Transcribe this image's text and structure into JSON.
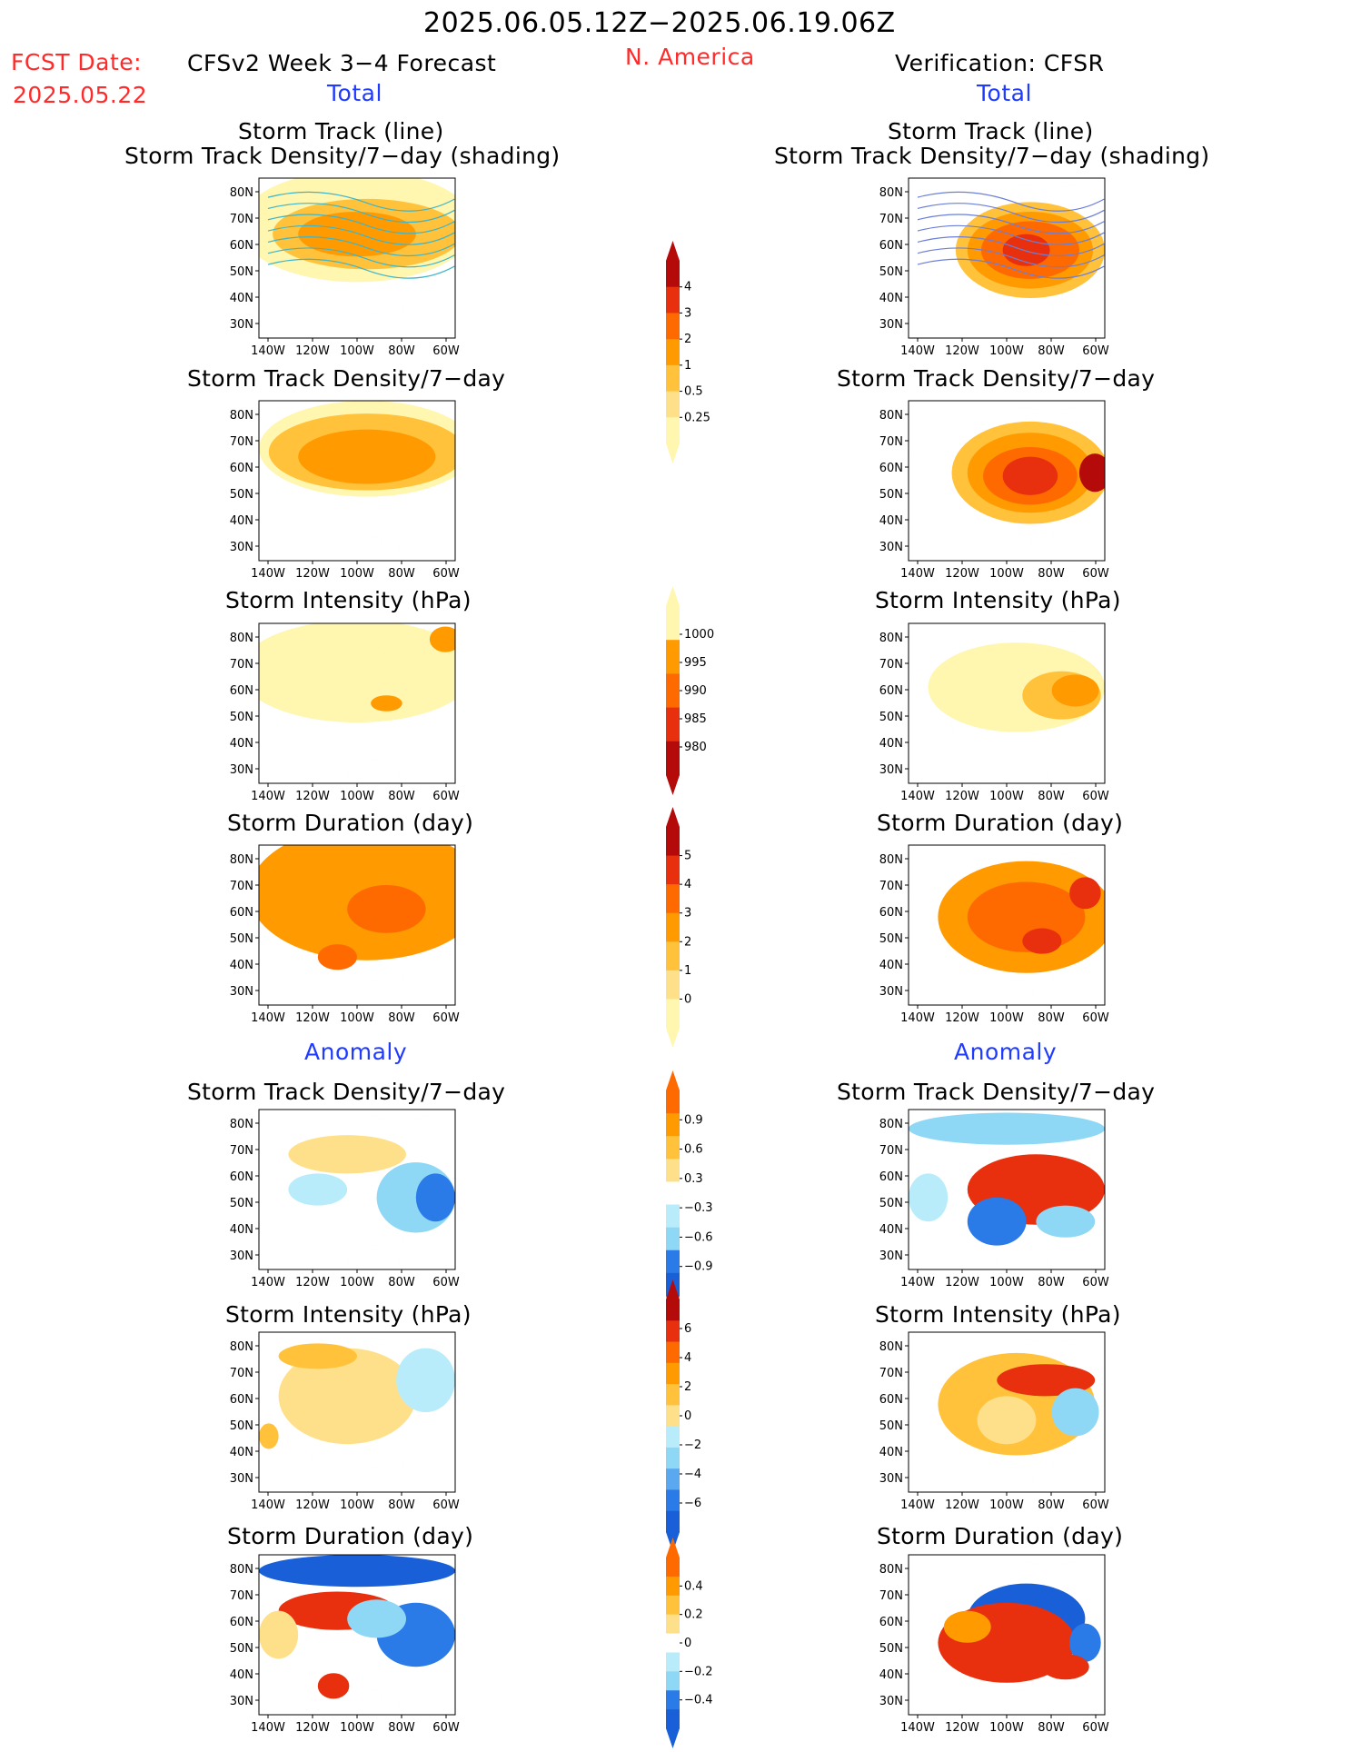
{
  "header": {
    "date_range": "2025.06.05.12Z−2025.06.19.06Z",
    "fcst_label": "FCST Date:",
    "fcst_date": "2025.05.22",
    "left_title": "CFSv2 Week 3−4 Forecast",
    "region": "N. America",
    "right_title": "Verification: CFSR",
    "total_left": "Total",
    "total_right": "Total",
    "anomaly_left": "Anomaly",
    "anomaly_right": "Anomaly"
  },
  "panel_titles": {
    "track_line": "Storm Track (line)",
    "track_shading": "Storm Track Density/7−day (shading)",
    "density": "Storm Track Density/7−day",
    "intensity": "Storm Intensity (hPa)",
    "duration": "Storm Duration (day)"
  },
  "axes": {
    "lat_labels": [
      "80N",
      "70N",
      "60N",
      "50N",
      "40N",
      "30N"
    ],
    "lon_labels": [
      "140W",
      "120W",
      "100W",
      "80W",
      "60W"
    ]
  },
  "colorbars": {
    "density_total": [
      "4",
      "3",
      "2",
      "1",
      "0.5",
      "0.25"
    ],
    "intensity_total": [
      "1000",
      "995",
      "990",
      "985",
      "980"
    ],
    "duration_total": [
      "5",
      "4",
      "3",
      "2",
      "1",
      "0"
    ],
    "density_anom": [
      "0.9",
      "0.6",
      "0.3",
      "−0.3",
      "−0.6",
      "−0.9"
    ],
    "intensity_anom": [
      "6",
      "4",
      "2",
      "0",
      "−2",
      "−4",
      "−6"
    ],
    "duration_anom": [
      "0.4",
      "0.2",
      "0",
      "−0.2",
      "−0.4"
    ]
  },
  "colors": {
    "yellow_light": "#fff6b0",
    "yellow": "#ffe08a",
    "gold": "#ffc23a",
    "orange": "#ff9a00",
    "orange_dark": "#ff6a00",
    "red": "#e8300e",
    "dark_red": "#b50a0a",
    "light_cyan": "#b8ecfa",
    "cyan": "#8fd8f5",
    "blue_light": "#5aa8f0",
    "blue": "#2a7ae8",
    "blue_dark": "#1960d8"
  }
}
